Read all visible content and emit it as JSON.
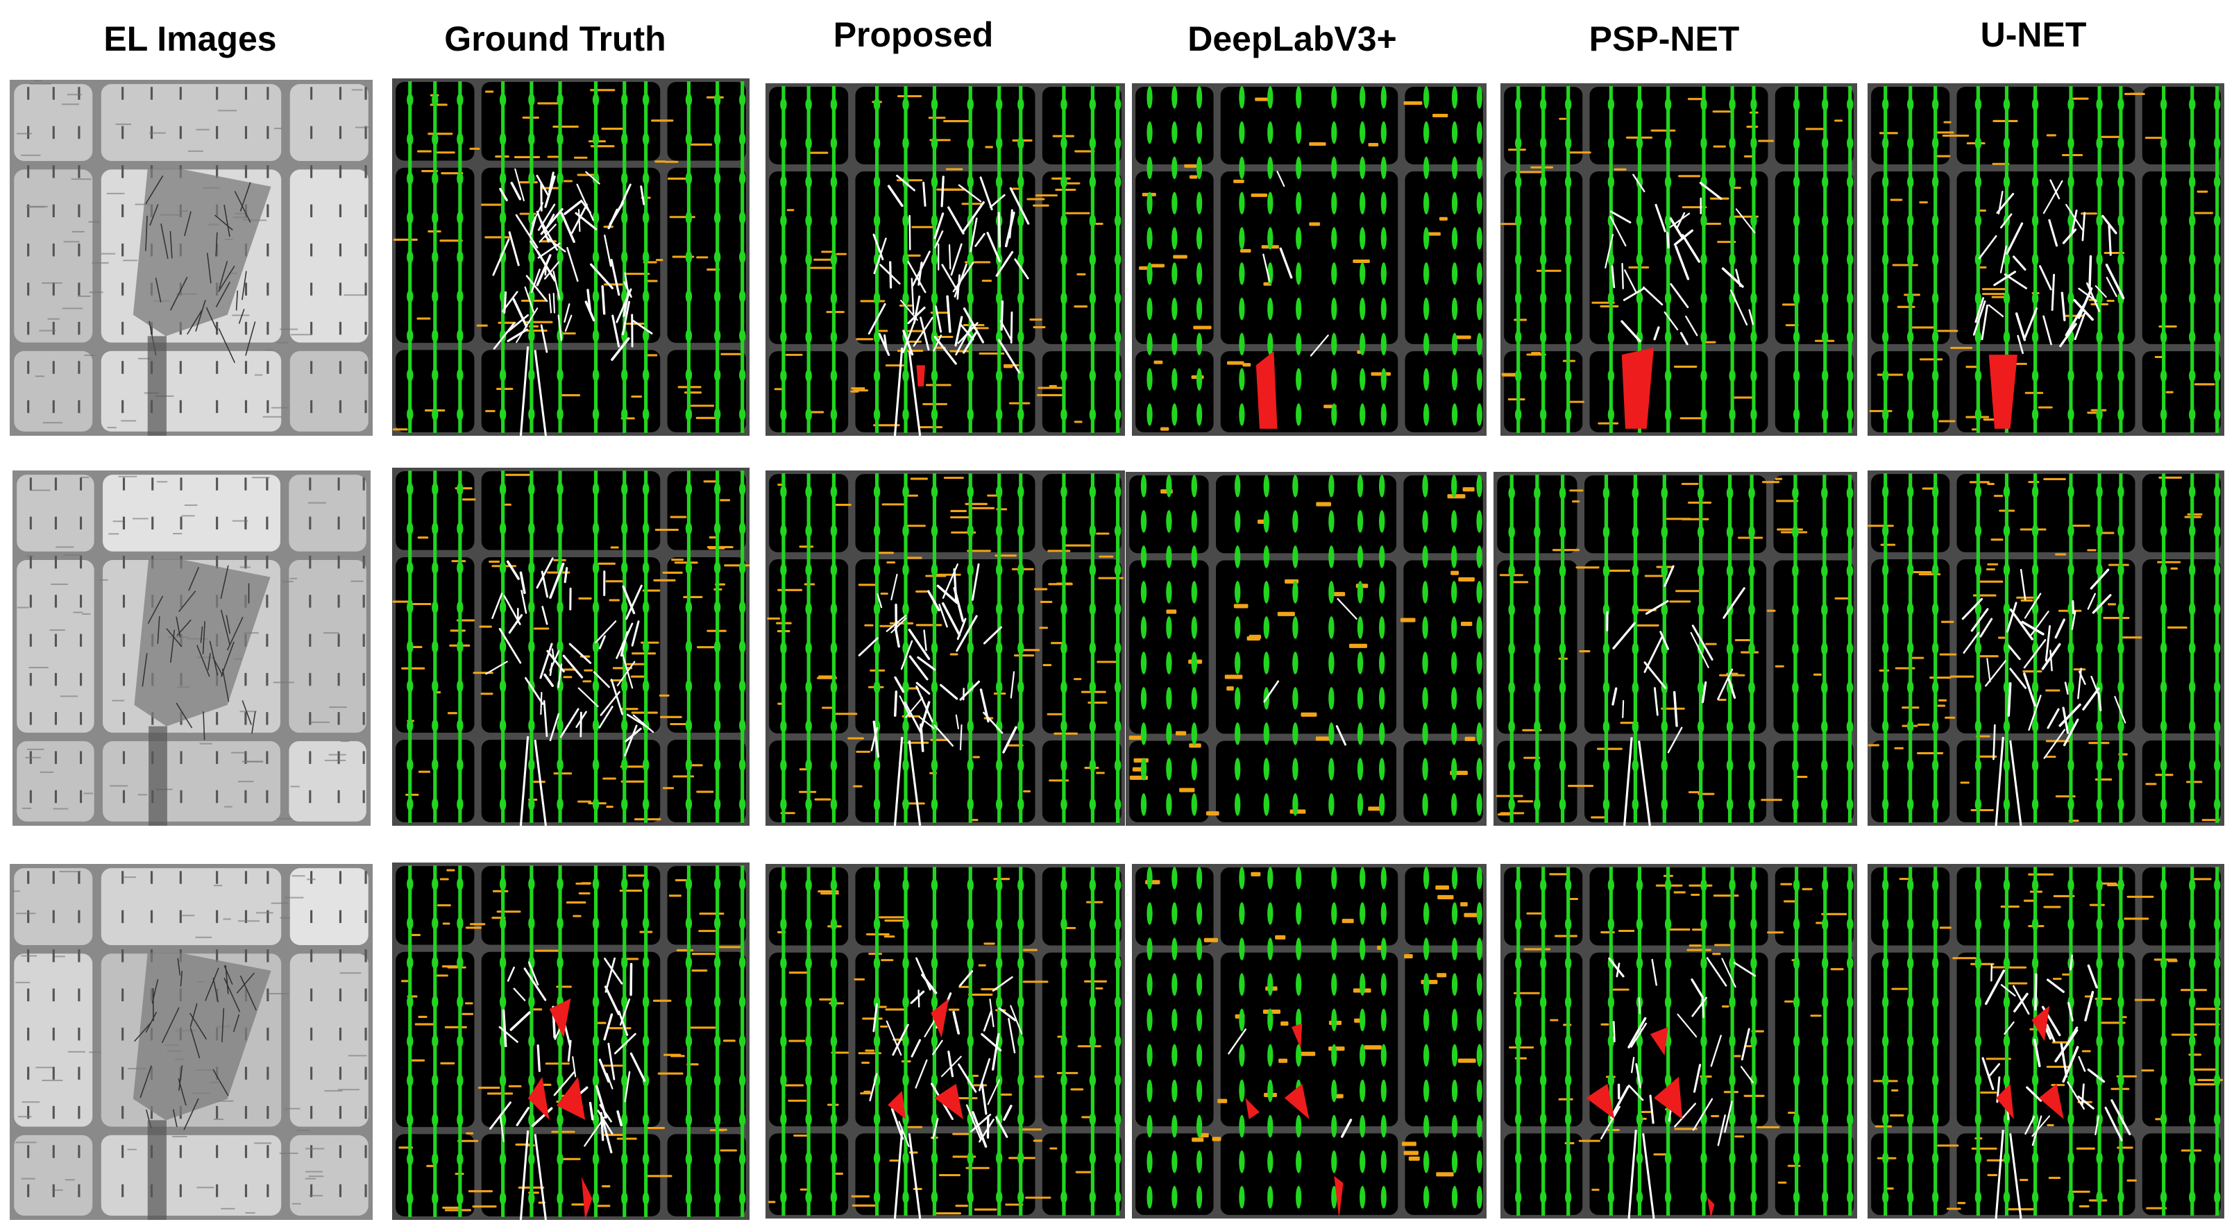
{
  "columns": [
    {
      "title": "EL Images"
    },
    {
      "title": "Ground Truth"
    },
    {
      "title": "Proposed"
    },
    {
      "title": "DeepLabV3+"
    },
    {
      "title": "PSP-NET"
    },
    {
      "title": "U-NET"
    }
  ],
  "legend_colors": {
    "busbar": "#22d61f",
    "finger_defect": "#f2a418",
    "crack": "#ffffff",
    "dark_area": "#ee1c1c",
    "background": "#000000",
    "cell_gap": "#4a4a4a"
  },
  "rows": 3
}
